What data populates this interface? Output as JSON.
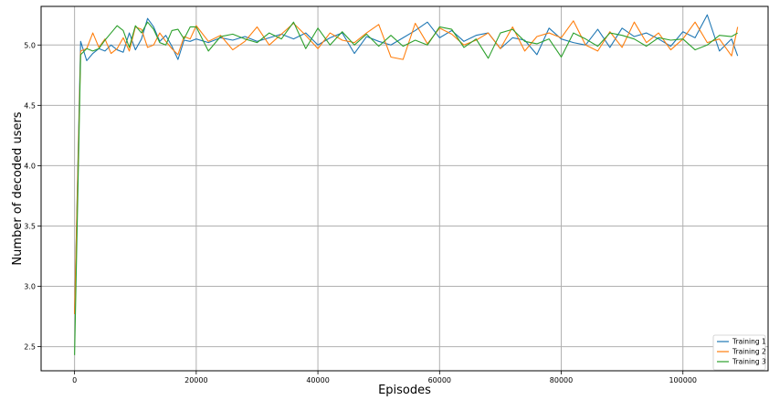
{
  "chart_data": {
    "type": "line",
    "xlabel": "Episodes",
    "ylabel": "Number of decoded users",
    "xlim": [
      -5500,
      114000
    ],
    "ylim": [
      2.3,
      5.32
    ],
    "xticks": [
      0,
      20000,
      40000,
      60000,
      80000,
      100000
    ],
    "xtick_labels": [
      "0",
      "20000",
      "40000",
      "60000",
      "80000",
      "100000"
    ],
    "yticks": [
      2.5,
      3.0,
      3.5,
      4.0,
      4.5,
      5.0
    ],
    "ytick_labels": [
      "2.5",
      "3.0",
      "3.5",
      "4.0",
      "4.5",
      "5.0"
    ],
    "grid": true,
    "legend_position": "lower-right",
    "series": [
      {
        "name": "Training 1",
        "color": "#1f77b4",
        "x": [
          0,
          1000,
          2000,
          3000,
          4000,
          5000,
          6000,
          7000,
          8000,
          9000,
          10000,
          11000,
          12000,
          13000,
          14000,
          15000,
          16000,
          17000,
          18000,
          19000,
          20000,
          22000,
          24000,
          26000,
          28000,
          30000,
          32000,
          34000,
          36000,
          38000,
          40000,
          42000,
          44000,
          46000,
          48000,
          50000,
          52000,
          54000,
          56000,
          58000,
          60000,
          62000,
          64000,
          66000,
          68000,
          70000,
          72000,
          74000,
          76000,
          78000,
          80000,
          82000,
          84000,
          86000,
          88000,
          90000,
          92000,
          94000,
          96000,
          98000,
          100000,
          102000,
          104000,
          106000,
          108000,
          109000
        ],
        "y": [
          2.77,
          5.03,
          4.87,
          4.93,
          4.97,
          4.95,
          5.0,
          4.96,
          4.94,
          5.1,
          4.96,
          5.05,
          5.22,
          5.15,
          5.03,
          5.08,
          4.99,
          4.88,
          5.04,
          5.03,
          5.05,
          5.02,
          5.06,
          5.04,
          5.07,
          5.03,
          5.06,
          5.09,
          5.05,
          5.1,
          5.0,
          5.06,
          5.1,
          4.93,
          5.07,
          5.03,
          5.0,
          5.06,
          5.12,
          5.19,
          5.06,
          5.12,
          5.03,
          5.08,
          5.1,
          4.97,
          5.06,
          5.04,
          4.92,
          5.14,
          5.05,
          5.02,
          5.0,
          5.13,
          4.98,
          5.14,
          5.07,
          5.1,
          5.05,
          4.99,
          5.11,
          5.06,
          5.25,
          4.95,
          5.05,
          4.91
        ]
      },
      {
        "name": "Training 2",
        "color": "#ff7f0e",
        "x": [
          0,
          1000,
          2000,
          3000,
          4000,
          5000,
          6000,
          7000,
          8000,
          9000,
          10000,
          11000,
          12000,
          13000,
          14000,
          15000,
          16000,
          17000,
          18000,
          19000,
          20000,
          22000,
          24000,
          26000,
          28000,
          30000,
          32000,
          34000,
          36000,
          38000,
          40000,
          42000,
          44000,
          46000,
          48000,
          50000,
          52000,
          54000,
          56000,
          58000,
          60000,
          62000,
          64000,
          66000,
          68000,
          70000,
          72000,
          74000,
          76000,
          78000,
          80000,
          82000,
          84000,
          86000,
          88000,
          90000,
          92000,
          94000,
          96000,
          98000,
          100000,
          102000,
          104000,
          106000,
          108000,
          109000
        ],
        "y": [
          2.77,
          4.95,
          4.97,
          5.1,
          4.98,
          5.05,
          4.93,
          4.97,
          5.06,
          4.95,
          5.15,
          5.13,
          4.98,
          5.0,
          5.1,
          5.03,
          4.97,
          4.92,
          5.07,
          5.05,
          5.16,
          5.03,
          5.08,
          4.96,
          5.03,
          5.15,
          5.0,
          5.09,
          5.18,
          5.08,
          4.97,
          5.1,
          5.04,
          5.02,
          5.1,
          5.17,
          4.9,
          4.88,
          5.18,
          5.01,
          5.14,
          5.09,
          5.0,
          5.04,
          5.1,
          4.97,
          5.15,
          4.95,
          5.07,
          5.1,
          5.06,
          5.2,
          5.0,
          4.95,
          5.11,
          4.98,
          5.19,
          5.02,
          5.1,
          4.96,
          5.05,
          5.19,
          5.02,
          5.05,
          4.91,
          5.15
        ]
      },
      {
        "name": "Training 3",
        "color": "#2ca02c",
        "x": [
          0,
          1000,
          2000,
          3000,
          4000,
          5000,
          6000,
          7000,
          8000,
          9000,
          10000,
          11000,
          12000,
          13000,
          14000,
          15000,
          16000,
          17000,
          18000,
          19000,
          20000,
          22000,
          24000,
          26000,
          28000,
          30000,
          32000,
          34000,
          36000,
          38000,
          40000,
          42000,
          44000,
          46000,
          48000,
          50000,
          52000,
          54000,
          56000,
          58000,
          60000,
          62000,
          64000,
          66000,
          68000,
          70000,
          72000,
          74000,
          76000,
          78000,
          80000,
          82000,
          84000,
          86000,
          88000,
          90000,
          92000,
          94000,
          96000,
          98000,
          100000,
          102000,
          104000,
          106000,
          108000,
          109000
        ],
        "y": [
          2.43,
          4.92,
          4.97,
          4.95,
          4.97,
          5.04,
          5.1,
          5.16,
          5.12,
          4.98,
          5.16,
          5.1,
          5.19,
          5.13,
          5.02,
          5.0,
          5.12,
          5.13,
          5.05,
          5.15,
          5.15,
          4.95,
          5.07,
          5.09,
          5.05,
          5.02,
          5.1,
          5.05,
          5.19,
          4.97,
          5.14,
          5.0,
          5.11,
          5.0,
          5.09,
          4.99,
          5.08,
          4.99,
          5.04,
          5.0,
          5.15,
          5.13,
          4.98,
          5.05,
          4.89,
          5.1,
          5.13,
          5.03,
          5.01,
          5.05,
          4.9,
          5.1,
          5.05,
          4.99,
          5.1,
          5.08,
          5.05,
          4.99,
          5.06,
          5.04,
          5.05,
          4.96,
          5.0,
          5.08,
          5.07,
          5.1
        ]
      }
    ]
  }
}
